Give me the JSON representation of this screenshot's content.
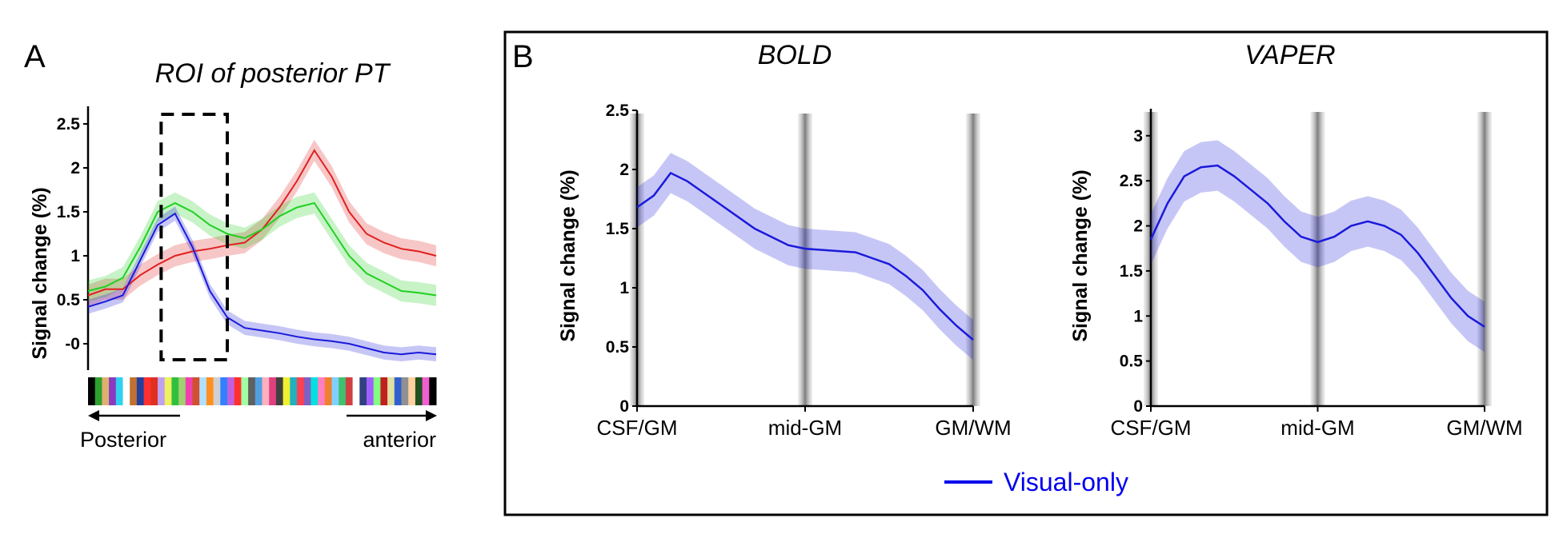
{
  "colors": {
    "blue": "#1a1adc",
    "red": "#e02020",
    "green": "#20d020",
    "legend_blue": "#0000ee"
  },
  "chart_data": [
    {
      "panel": "A",
      "type": "line",
      "title": "ROI of posterior PT",
      "ylabel": "Signal change (%)",
      "xlabel_left": "Posterior",
      "xlabel_right": "anterior",
      "ylim": [
        -0.3,
        2.7
      ],
      "yticks": [
        "-0",
        "0.5",
        "1",
        "1.5",
        "2",
        "2.5"
      ],
      "ytick_values": [
        0,
        0.5,
        1,
        1.5,
        2,
        2.5
      ],
      "x": [
        0,
        5,
        10,
        15,
        20,
        25,
        30,
        35,
        40,
        45,
        50,
        55,
        60,
        65,
        70,
        75,
        80,
        85,
        90,
        95,
        100
      ],
      "series": [
        {
          "color": "red",
          "values": [
            0.55,
            0.62,
            0.62,
            0.78,
            0.9,
            1.0,
            1.05,
            1.08,
            1.12,
            1.15,
            1.3,
            1.55,
            1.85,
            2.2,
            1.9,
            1.5,
            1.25,
            1.15,
            1.08,
            1.05,
            1.0
          ],
          "band": 0.12
        },
        {
          "color": "green",
          "values": [
            0.6,
            0.65,
            0.75,
            1.1,
            1.5,
            1.6,
            1.5,
            1.35,
            1.25,
            1.2,
            1.3,
            1.45,
            1.55,
            1.6,
            1.3,
            1.0,
            0.8,
            0.7,
            0.6,
            0.58,
            0.55
          ],
          "band": 0.12
        },
        {
          "color": "blue",
          "values": [
            0.42,
            0.48,
            0.55,
            0.95,
            1.35,
            1.48,
            1.1,
            0.6,
            0.3,
            0.18,
            0.15,
            0.12,
            0.08,
            0.05,
            0.03,
            0.0,
            -0.05,
            -0.1,
            -0.12,
            -0.1,
            -0.12
          ],
          "band": 0.08
        }
      ],
      "dashed_box_x": [
        21,
        40
      ],
      "strip_colors": [
        "#000000",
        "#2ea02e",
        "#e0b070",
        "#8a3ac0",
        "#30d0f0",
        "#ffffff",
        "#c07030",
        "#2040a0",
        "#ff3030",
        "#e03020",
        "#c0a0f0",
        "#f0f060",
        "#30c040",
        "#a0d070",
        "#f040b0",
        "#d05030",
        "#b0e0ff",
        "#ff9020",
        "#d0d0d0",
        "#3080ff",
        "#c060e0",
        "#ff3030",
        "#a0ffa0",
        "#606060",
        "#50a0e0",
        "#ffb0c0",
        "#e04080",
        "#404040",
        "#f0f030",
        "#20b0c0",
        "#ff4050",
        "#8060c0",
        "#00e0e0",
        "#ff80c0",
        "#f08030",
        "#80d0ff",
        "#40c070",
        "#d04040",
        "#ffffff",
        "#304080",
        "#a060ff",
        "#80ff80",
        "#c02020",
        "#e0e0a0",
        "#3060d0",
        "#909090",
        "#ffd0a0",
        "#205020",
        "#f060d0",
        "#000000"
      ]
    },
    {
      "panel": "B-left",
      "type": "line",
      "title": "BOLD",
      "ylabel": "Signal change (%)",
      "ylim": [
        0,
        2.5
      ],
      "yticks": [
        "0",
        "0.5",
        "1",
        "1.5",
        "2",
        "2.5"
      ],
      "ytick_values": [
        0,
        0.5,
        1,
        1.5,
        2,
        2.5
      ],
      "xticks": [
        "CSF/GM",
        "mid-GM",
        "GM/WM"
      ],
      "xlim": [
        0,
        20
      ],
      "x": [
        0,
        1,
        2,
        3,
        4,
        5,
        6,
        7,
        8,
        9,
        10,
        11,
        12,
        13,
        14,
        15,
        16,
        17,
        18,
        19,
        20
      ],
      "series": [
        {
          "name": "Visual-only",
          "color": "blue",
          "values": [
            1.68,
            1.78,
            1.97,
            1.9,
            1.8,
            1.7,
            1.6,
            1.5,
            1.43,
            1.36,
            1.33,
            1.32,
            1.31,
            1.3,
            1.25,
            1.2,
            1.1,
            0.98,
            0.82,
            0.68,
            0.56
          ],
          "band": 0.17
        }
      ]
    },
    {
      "panel": "B-right",
      "type": "line",
      "title": "VAPER",
      "ylabel": "Signal change (%)",
      "ylim": [
        0,
        3.3
      ],
      "yticks": [
        "0",
        "0.5",
        "1",
        "1.5",
        "2",
        "2.5",
        "3"
      ],
      "ytick_values": [
        0,
        0.5,
        1,
        1.5,
        2,
        2.5,
        3
      ],
      "xticks": [
        "CSF/GM",
        "mid-GM",
        "GM/WM"
      ],
      "xlim": [
        0,
        20
      ],
      "x": [
        0,
        1,
        2,
        3,
        4,
        5,
        6,
        7,
        8,
        9,
        10,
        11,
        12,
        13,
        14,
        15,
        16,
        17,
        18,
        19,
        20
      ],
      "series": [
        {
          "name": "Visual-only",
          "color": "blue",
          "values": [
            1.85,
            2.25,
            2.55,
            2.65,
            2.67,
            2.55,
            2.4,
            2.25,
            2.05,
            1.88,
            1.82,
            1.88,
            2.0,
            2.05,
            2.0,
            1.9,
            1.7,
            1.45,
            1.2,
            1.0,
            0.88
          ],
          "band": 0.28
        }
      ]
    }
  ],
  "panel_letters": {
    "a": "A",
    "b": "B"
  },
  "legend": {
    "label": "Visual-only"
  }
}
